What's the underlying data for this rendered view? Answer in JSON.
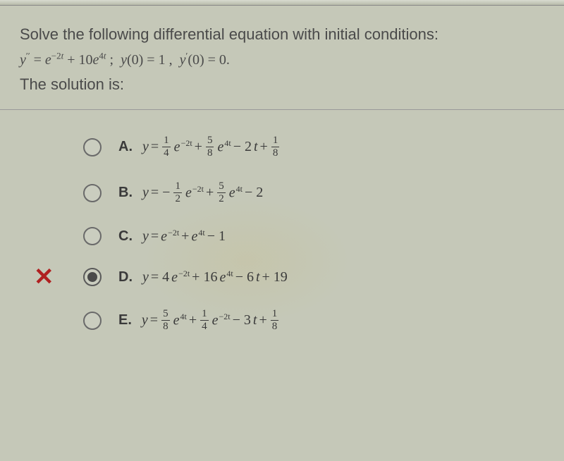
{
  "question": {
    "prompt": "Solve the following differential equation with initial conditions:",
    "equation_html": "<span class='var'>y</span><sup>′′</sup> = <span class='var'>e</span><sup>−2<span class='var'>t</span></sup> + 10<span class='var'>e</span><sup>4<span class='var'>t</span></sup> ; &nbsp;<span class='var'>y</span>(0) = 1 , &nbsp;<span class='var'>y</span><sup>′</sup>(0) = 0.",
    "solution_label": "The solution is:"
  },
  "options": [
    {
      "letter": "A.",
      "selected": false,
      "marked_wrong": false,
      "math_html": "<span class='var'>y</span> = <span class='frac'><span class='num'>1</span><span class='den'>4</span></span><span class='exp'>e<sup>−2t</sup></span> + <span class='frac'><span class='num'>5</span><span class='den'>8</span></span><span class='exp'>e<sup>4t</sup></span> − 2<span class='var'>t</span> + <span class='frac'><span class='num'>1</span><span class='den'>8</span></span>"
    },
    {
      "letter": "B.",
      "selected": false,
      "marked_wrong": false,
      "math_html": "<span class='var'>y</span> = −<span class='frac'><span class='num'>1</span><span class='den'>2</span></span><span class='exp'>e<sup>−2t</sup></span> + <span class='frac'><span class='num'>5</span><span class='den'>2</span></span><span class='exp'>e<sup>4t</sup></span> − 2"
    },
    {
      "letter": "C.",
      "selected": false,
      "marked_wrong": false,
      "math_html": "<span class='var'>y</span> = <span class='exp'>e<sup>−2t</sup></span> + <span class='exp'>e<sup>4t</sup></span> − 1"
    },
    {
      "letter": "D.",
      "selected": true,
      "marked_wrong": true,
      "math_html": "<span class='var'>y</span> = 4<span class='exp'>e<sup>−2t</sup></span> + 16<span class='exp'>e<sup>4t</sup></span> − 6<span class='var'>t</span> + 19"
    },
    {
      "letter": "E.",
      "selected": false,
      "marked_wrong": false,
      "math_html": "<span class='var'>y</span> = <span class='frac'><span class='num'>5</span><span class='den'>8</span></span><span class='exp'>e<sup>4t</sup></span> + <span class='frac'><span class='num'>1</span><span class='den'>4</span></span><span class='exp'>e<sup>−2t</sup></span> − 3<span class='var'>t</span> + <span class='frac'><span class='num'>1</span><span class='den'>8</span></span>"
    }
  ],
  "colors": {
    "background": "#c5c8b8",
    "text": "#4a4a4a",
    "wrong_mark": "#b02020",
    "divider": "#999999"
  }
}
